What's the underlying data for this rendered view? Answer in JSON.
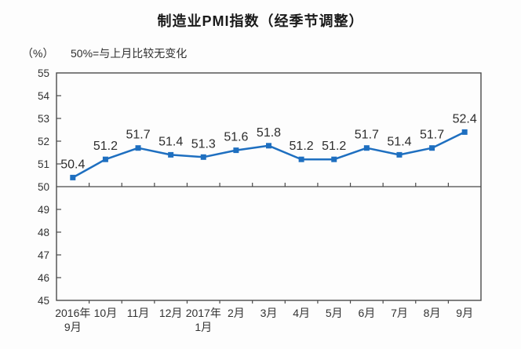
{
  "chart_data": {
    "type": "line",
    "title": "制造业PMI指数（经季节调整）",
    "unit_label": "（%）",
    "subtitle": "50%=与上月比较无变化",
    "categories": [
      [
        "2016年",
        "9月"
      ],
      "10月",
      "11月",
      "12月",
      [
        "2017年",
        "1月"
      ],
      "2月",
      "3月",
      "4月",
      "5月",
      "6月",
      "7月",
      "8月",
      "9月"
    ],
    "values": [
      50.4,
      51.2,
      51.7,
      51.4,
      51.3,
      51.6,
      51.8,
      51.2,
      51.2,
      51.7,
      51.4,
      51.7,
      52.4
    ],
    "xlabel": "",
    "ylabel": "（%）",
    "ylim": [
      45,
      55
    ],
    "ytick_step": 1,
    "reference_line": 50,
    "legend": "none",
    "grid": "off",
    "colors": {
      "line": "#1e6fc0",
      "marker": "#1e6fc0",
      "axis": "#4a4a4a",
      "tick_text": "#333333",
      "value_label": "#2d2d2d",
      "background": "#fdfdfd"
    }
  }
}
